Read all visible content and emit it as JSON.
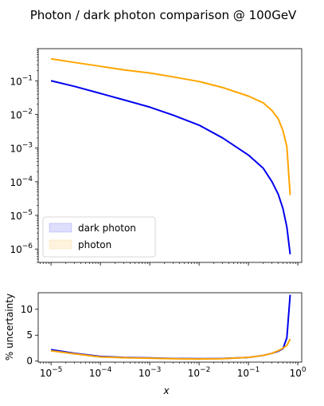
{
  "chart_data": {
    "title": "Photon / dark photon comparison @ 100GeV",
    "colors": {
      "dark_photon": "#0000ee",
      "photon": "#ffa500"
    },
    "panels": [
      {
        "id": "main",
        "type": "line",
        "xscale": "log",
        "yscale": "log",
        "xlim": [
          5.5e-06,
          1.2
        ],
        "ylim": [
          4e-07,
          0.9
        ],
        "yticks": [
          {
            "value": 0.1,
            "base": "10",
            "exp": "−1"
          },
          {
            "value": 0.01,
            "base": "10",
            "exp": "−2"
          },
          {
            "value": 0.001,
            "base": "10",
            "exp": "−3"
          },
          {
            "value": 0.0001,
            "base": "10",
            "exp": "−4"
          },
          {
            "value": 1e-05,
            "base": "10",
            "exp": "−5"
          },
          {
            "value": 1e-06,
            "base": "10",
            "exp": "−6"
          }
        ],
        "legend": {
          "placement": "lower-left",
          "entries": [
            {
              "label": "dark photon",
              "color": "#0000ee"
            },
            {
              "label": "photon",
              "color": "#ffa500"
            }
          ]
        },
        "series": [
          {
            "name": "dark photon",
            "color": "#0000ee",
            "points": [
              [
                1e-05,
                0.1
              ],
              [
                3e-05,
                0.068
              ],
              [
                0.0001,
                0.042
              ],
              [
                0.0003,
                0.027
              ],
              [
                0.001,
                0.0165
              ],
              [
                0.003,
                0.0095
              ],
              [
                0.01,
                0.0048
              ],
              [
                0.03,
                0.002
              ],
              [
                0.1,
                0.00062
              ],
              [
                0.2,
                0.00025
              ],
              [
                0.3,
                0.0001
              ],
              [
                0.4,
                4.3e-05
              ],
              [
                0.5,
                1.6e-05
              ],
              [
                0.6,
                4.5e-06
              ],
              [
                0.7,
                7e-07
              ]
            ]
          },
          {
            "name": "photon",
            "color": "#ffa500",
            "points": [
              [
                1e-05,
                0.45
              ],
              [
                3e-05,
                0.35
              ],
              [
                0.0001,
                0.27
              ],
              [
                0.0003,
                0.21
              ],
              [
                0.001,
                0.17
              ],
              [
                0.003,
                0.13
              ],
              [
                0.01,
                0.095
              ],
              [
                0.03,
                0.063
              ],
              [
                0.1,
                0.035
              ],
              [
                0.2,
                0.022
              ],
              [
                0.3,
                0.013
              ],
              [
                0.4,
                0.0075
              ],
              [
                0.5,
                0.0033
              ],
              [
                0.6,
                0.0011
              ],
              [
                0.7,
                4e-05
              ]
            ]
          }
        ]
      },
      {
        "id": "uncertainty",
        "type": "line",
        "xscale": "log",
        "yscale": "linear",
        "xlim": [
          5.5e-06,
          1.2
        ],
        "ylim": [
          -0.2,
          13.2
        ],
        "ylabel": "% uncertainty",
        "xlabel": "x",
        "yticks": [
          {
            "value": 0,
            "text": "0"
          },
          {
            "value": 5,
            "text": "5"
          },
          {
            "value": 10,
            "text": "10"
          }
        ],
        "xticks": [
          {
            "value": 1e-05,
            "base": "10",
            "exp": "−5"
          },
          {
            "value": 0.0001,
            "base": "10",
            "exp": "−4"
          },
          {
            "value": 0.001,
            "base": "10",
            "exp": "−3"
          },
          {
            "value": 0.01,
            "base": "10",
            "exp": "−2"
          },
          {
            "value": 0.1,
            "base": "10",
            "exp": "−1"
          },
          {
            "value": 1,
            "base": "10",
            "exp": "0"
          }
        ],
        "series": [
          {
            "name": "dark photon",
            "color": "#0000ee",
            "points": [
              [
                1e-05,
                2.2
              ],
              [
                3e-05,
                1.5
              ],
              [
                0.0001,
                0.9
              ],
              [
                0.0003,
                0.7
              ],
              [
                0.001,
                0.6
              ],
              [
                0.003,
                0.5
              ],
              [
                0.01,
                0.45
              ],
              [
                0.03,
                0.5
              ],
              [
                0.1,
                0.7
              ],
              [
                0.2,
                1.1
              ],
              [
                0.3,
                1.5
              ],
              [
                0.4,
                1.9
              ],
              [
                0.5,
                2.4
              ],
              [
                0.6,
                4.5
              ],
              [
                0.7,
                12.8
              ]
            ]
          },
          {
            "name": "photon",
            "color": "#ffa500",
            "points": [
              [
                1e-05,
                2.0
              ],
              [
                3e-05,
                1.4
              ],
              [
                0.0001,
                0.8
              ],
              [
                0.0003,
                0.65
              ],
              [
                0.001,
                0.55
              ],
              [
                0.003,
                0.45
              ],
              [
                0.01,
                0.4
              ],
              [
                0.03,
                0.45
              ],
              [
                0.1,
                0.7
              ],
              [
                0.2,
                1.1
              ],
              [
                0.3,
                1.5
              ],
              [
                0.4,
                2.0
              ],
              [
                0.5,
                2.5
              ],
              [
                0.6,
                3.0
              ],
              [
                0.7,
                4.3
              ]
            ]
          }
        ]
      }
    ]
  }
}
